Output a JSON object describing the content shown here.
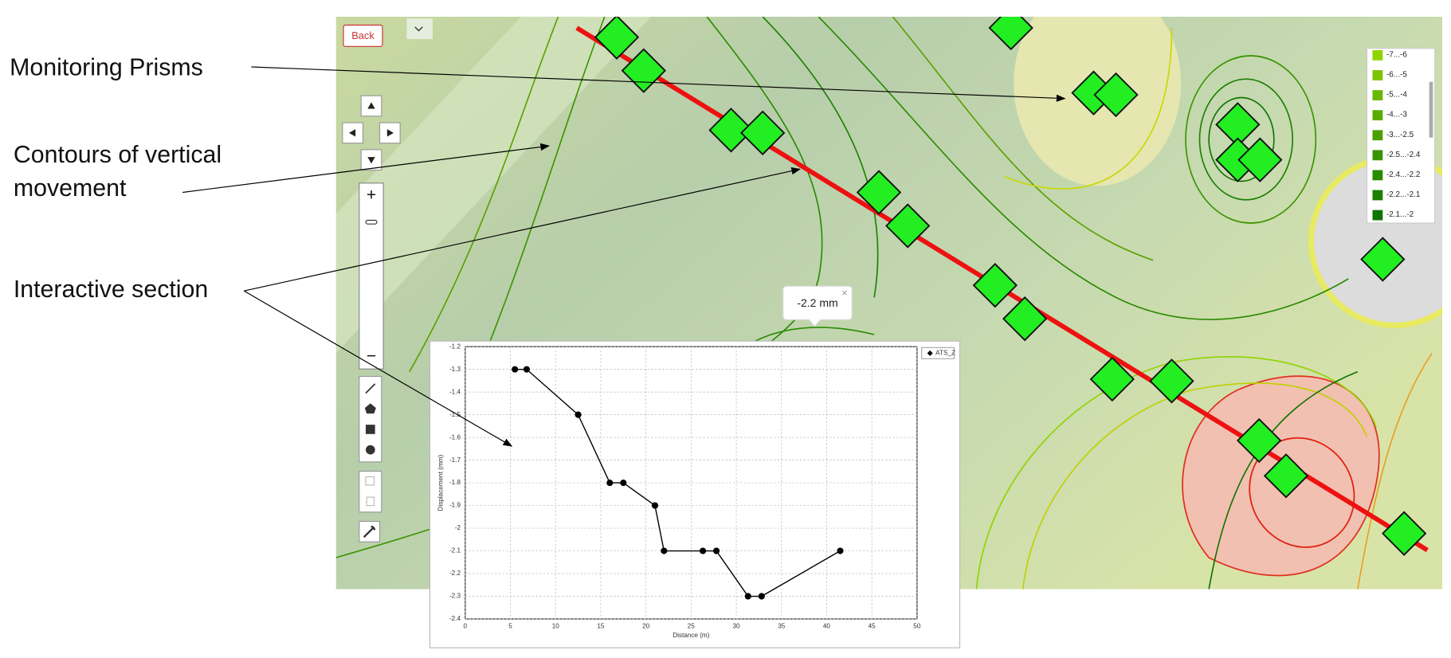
{
  "annotations": {
    "prisms": "Monitoring Prisms",
    "contours": [
      "Contours of vertical",
      "movement"
    ],
    "section": "Interactive section"
  },
  "map": {
    "back_button": "Back",
    "zoom_in": "+",
    "zoom_out": "−",
    "tooltip": "-2.2 mm",
    "tooltip_close": "×",
    "legend": [
      {
        "label": "-7...-6",
        "color": "#8fd400"
      },
      {
        "label": "-6...-5",
        "color": "#7cc400"
      },
      {
        "label": "-5...-4",
        "color": "#6ab800"
      },
      {
        "label": "-4...-3",
        "color": "#5aad00"
      },
      {
        "label": "-3...-2.5",
        "color": "#4aa000"
      },
      {
        "label": "-2.5...-2.4",
        "color": "#3a9400"
      },
      {
        "label": "-2.4...-2.2",
        "color": "#2a8a00"
      },
      {
        "label": "-2.2...-2.1",
        "color": "#1c7f00"
      },
      {
        "label": "-2.1...-2",
        "color": "#107400"
      }
    ]
  },
  "chart_data": {
    "type": "line",
    "x_label": "Distance (m)",
    "y_label": "Displacement (mm)",
    "x": [
      5.5,
      6.8,
      12.5,
      16,
      17.5,
      21,
      22,
      26.3,
      27.8,
      31.3,
      32.8,
      41.5
    ],
    "series": [
      {
        "name": "ATS_Z",
        "color": "#000000",
        "values": [
          -1.3,
          -1.3,
          -1.5,
          -1.8,
          -1.8,
          -1.9,
          -2.1,
          -2.1,
          -2.1,
          -2.3,
          -2.3,
          -2.1
        ]
      }
    ],
    "xlim": [
      0,
      50
    ],
    "xticks": [
      0,
      5,
      10,
      15,
      20,
      25,
      30,
      35,
      40,
      45,
      50
    ],
    "ylim": [
      -2.4,
      -1.2
    ],
    "yticks": [
      -1.2,
      -1.3,
      -1.4,
      -1.5,
      -1.6,
      -1.7,
      -1.8,
      -1.9,
      -2,
      -2.1,
      -2.2,
      -2.3,
      -2.4
    ],
    "grid": true
  }
}
